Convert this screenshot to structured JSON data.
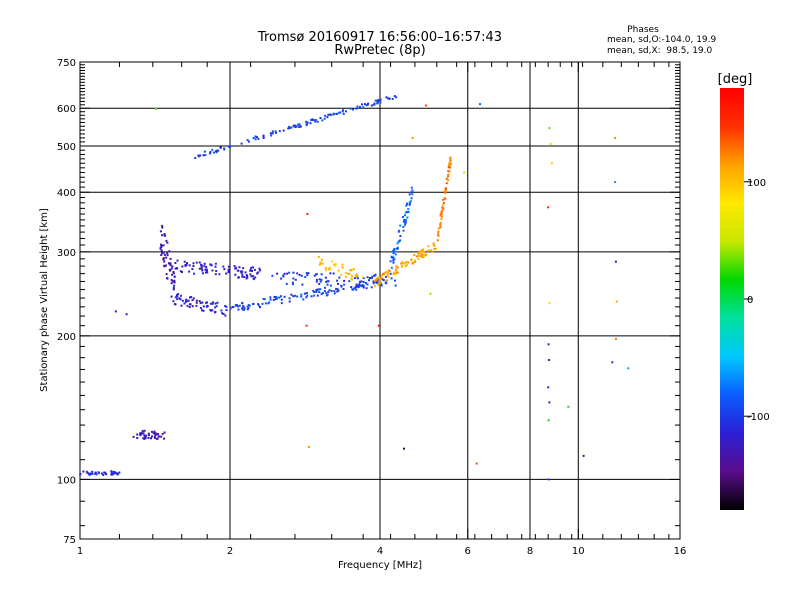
{
  "chart_data": {
    "type": "scatter",
    "title": "Tromsø 20160917 16:56:00–16:57:43",
    "subtitle": "RwPretec (8p)",
    "xlabel": "Frequency [MHz]",
    "ylabel": "Stationary phase Virtual Height [km]",
    "x_scale": "log",
    "y_scale": "log",
    "xlim": [
      1,
      16
    ],
    "ylim": [
      75,
      750
    ],
    "x_ticks": [
      1,
      2,
      4,
      6,
      8,
      10,
      16
    ],
    "y_ticks": [
      75,
      100,
      200,
      300,
      400,
      500,
      600,
      750
    ],
    "x_gridlines": [
      2,
      4,
      6,
      8,
      10
    ],
    "y_gridlines": [
      100,
      200,
      300,
      400,
      500,
      600
    ],
    "grid": true,
    "legend": {
      "heading": "Phases",
      "lines": [
        "mean, sd,O:-104.0, 19.9",
        "mean, sd,X:  98.5, 19.0"
      ],
      "placement": "top-right"
    },
    "colorbar": {
      "label": "[deg]",
      "range": [
        -180,
        180
      ],
      "ticks": [
        100,
        0,
        -100
      ],
      "colormap": [
        "#000000",
        "#5a0d8c",
        "#2a1fd4",
        "#0a5cff",
        "#00c8ff",
        "#00e0a0",
        "#00d800",
        "#c8e800",
        "#ffe800",
        "#ffa000",
        "#ff3000",
        "#ff0000"
      ]
    },
    "series": [
      {
        "segments": [
          {
            "x0": 1.0,
            "x1": 1.2,
            "y0": 103,
            "y1": 103,
            "n": 40,
            "jitter": 0.01,
            "phase": -110
          },
          {
            "x0": 1.28,
            "x1": 1.48,
            "y0": 124,
            "y1": 124,
            "n": 40,
            "jitter": 0.02,
            "phase": -130
          },
          {
            "x0": 1.45,
            "x1": 1.55,
            "y0": 330,
            "y1": 250,
            "n": 60,
            "jitter": 0.1,
            "phase": -130
          },
          {
            "x0": 1.55,
            "x1": 2.3,
            "y0": 280,
            "y1": 270,
            "n": 90,
            "jitter": 0.03,
            "phase": -120
          },
          {
            "x0": 1.55,
            "x1": 2.0,
            "y0": 240,
            "y1": 225,
            "n": 60,
            "jitter": 0.03,
            "phase": -115
          },
          {
            "x0": 2.0,
            "x1": 4.2,
            "y0": 228,
            "y1": 262,
            "n": 130,
            "jitter": 0.02,
            "phase": -95
          },
          {
            "x0": 2.4,
            "x1": 4.3,
            "y0": 265,
            "y1": 260,
            "n": 70,
            "jitter": 0.03,
            "phase": -100
          },
          {
            "x0": 4.2,
            "x1": 4.65,
            "y0": 280,
            "y1": 400,
            "n": 60,
            "jitter": 0.04,
            "phase": -80
          },
          {
            "x0": 1.7,
            "x1": 4.4,
            "y0": 475,
            "y1": 640,
            "n": 120,
            "jitter": 0.01,
            "phase": -95
          },
          {
            "x0": 3.0,
            "x1": 3.7,
            "y0": 285,
            "y1": 265,
            "n": 35,
            "jitter": 0.03,
            "phase": 100
          },
          {
            "x0": 3.9,
            "x1": 5.2,
            "y0": 258,
            "y1": 310,
            "n": 90,
            "jitter": 0.02,
            "phase": 110
          },
          {
            "x0": 5.2,
            "x1": 5.55,
            "y0": 310,
            "y1": 470,
            "n": 60,
            "jitter": 0.03,
            "phase": 125
          }
        ],
        "points": [
          {
            "x": 1.24,
            "y": 222,
            "phase": -120
          },
          {
            "x": 1.18,
            "y": 225,
            "phase": -130
          },
          {
            "x": 1.42,
            "y": 598,
            "phase": 30
          },
          {
            "x": 2.85,
            "y": 210,
            "phase": 150
          },
          {
            "x": 2.86,
            "y": 360,
            "phase": 150
          },
          {
            "x": 2.88,
            "y": 117,
            "phase": 120
          },
          {
            "x": 3.98,
            "y": 210,
            "phase": 170
          },
          {
            "x": 4.47,
            "y": 116,
            "phase": -160
          },
          {
            "x": 4.65,
            "y": 520,
            "phase": 120
          },
          {
            "x": 4.95,
            "y": 608,
            "phase": 140
          },
          {
            "x": 5.05,
            "y": 245,
            "phase": 40
          },
          {
            "x": 5.9,
            "y": 440,
            "phase": 50
          },
          {
            "x": 6.25,
            "y": 108,
            "phase": 140
          },
          {
            "x": 6.35,
            "y": 612,
            "phase": -80
          },
          {
            "x": 8.75,
            "y": 545,
            "phase": 30
          },
          {
            "x": 8.8,
            "y": 505,
            "phase": 50
          },
          {
            "x": 8.85,
            "y": 460,
            "phase": 100
          },
          {
            "x": 8.7,
            "y": 372,
            "phase": 160
          },
          {
            "x": 8.75,
            "y": 234,
            "phase": 90
          },
          {
            "x": 8.72,
            "y": 192,
            "phase": -120
          },
          {
            "x": 8.74,
            "y": 178,
            "phase": -130
          },
          {
            "x": 8.7,
            "y": 156,
            "phase": -140
          },
          {
            "x": 8.75,
            "y": 145,
            "phase": -120
          },
          {
            "x": 8.72,
            "y": 133,
            "phase": 20
          },
          {
            "x": 8.72,
            "y": 100,
            "phase": -100
          },
          {
            "x": 9.55,
            "y": 142,
            "phase": 20
          },
          {
            "x": 10.25,
            "y": 112,
            "phase": -150
          },
          {
            "x": 11.85,
            "y": 520,
            "phase": 120
          },
          {
            "x": 11.85,
            "y": 420,
            "phase": -60
          },
          {
            "x": 11.9,
            "y": 286,
            "phase": -130
          },
          {
            "x": 11.95,
            "y": 236,
            "phase": 110
          },
          {
            "x": 11.9,
            "y": 197,
            "phase": 130
          },
          {
            "x": 11.7,
            "y": 176,
            "phase": -110
          },
          {
            "x": 12.6,
            "y": 171,
            "phase": -60
          }
        ]
      }
    ]
  }
}
